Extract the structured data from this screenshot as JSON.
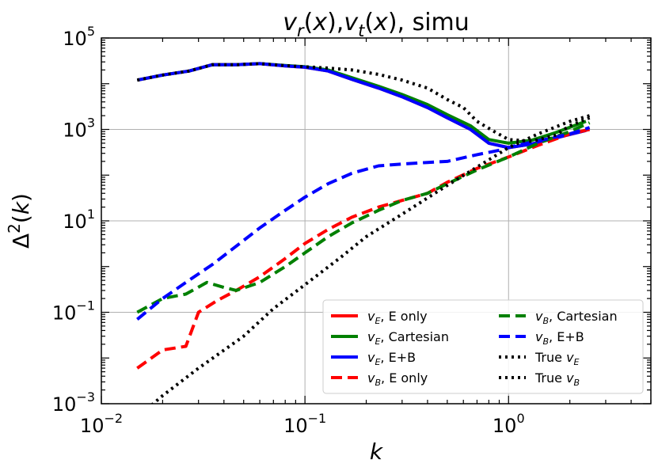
{
  "chart_data": {
    "type": "line",
    "title": "v_r(x),v_t(x), simu",
    "title_parts": [
      {
        "t": "v",
        "i": true
      },
      {
        "t": "r",
        "sub": true,
        "i": true
      },
      {
        "t": "("
      },
      {
        "t": "x",
        "i": true
      },
      {
        "t": "),"
      },
      {
        "t": "v",
        "i": true
      },
      {
        "t": "t",
        "sub": true,
        "i": true
      },
      {
        "t": "("
      },
      {
        "t": "x",
        "i": true
      },
      {
        "t": "), simu"
      }
    ],
    "xlabel": "k",
    "ylabel": "Δ²(k)",
    "ylabel_parts": [
      {
        "t": "Δ"
      },
      {
        "t": "2",
        "sup": true
      },
      {
        "t": "("
      },
      {
        "t": "k",
        "i": true
      },
      {
        "t": ")"
      }
    ],
    "xscale": "log",
    "yscale": "log",
    "xlim": [
      0.01,
      5.0
    ],
    "ylim": [
      0.001,
      100000
    ],
    "xticks": [
      0.01,
      0.1,
      1.0
    ],
    "xtick_labels": [
      {
        "base": "10",
        "exp": "−2"
      },
      {
        "base": "10",
        "exp": "−1"
      },
      {
        "base": "10",
        "exp": "0"
      }
    ],
    "yticks": [
      0.001,
      0.1,
      10,
      1000,
      100000
    ],
    "ytick_labels": [
      {
        "base": "10",
        "exp": "−3"
      },
      {
        "base": "10",
        "exp": "−1"
      },
      {
        "base": "10",
        "exp": "1"
      },
      {
        "base": "10",
        "exp": "3"
      },
      {
        "base": "10",
        "exp": "5"
      }
    ],
    "grid": true,
    "legend_position": "lower-right",
    "series": [
      {
        "name": "v_E, E only",
        "label_parts": [
          {
            "t": "v",
            "i": true
          },
          {
            "t": "E",
            "sub": true,
            "i": true
          },
          {
            "t": ", E only"
          }
        ],
        "color": "#ff0000",
        "dash": "solid",
        "x": [
          0.015,
          0.02,
          0.027,
          0.035,
          0.046,
          0.06,
          0.08,
          0.1,
          0.13,
          0.17,
          0.23,
          0.3,
          0.4,
          0.5,
          0.65,
          0.8,
          1.0,
          1.3,
          1.7,
          2.4
        ],
        "y": [
          12000,
          15500,
          19000,
          26000,
          26000,
          27500,
          24500,
          23000,
          19000,
          12500,
          8000,
          5200,
          3000,
          1800,
          1000,
          500,
          400,
          480,
          650,
          950
        ]
      },
      {
        "name": "v_E, Cartesian",
        "label_parts": [
          {
            "t": "v",
            "i": true
          },
          {
            "t": "E",
            "sub": true,
            "i": true
          },
          {
            "t": ", Cartesian"
          }
        ],
        "color": "#008000",
        "dash": "solid",
        "x": [
          0.015,
          0.02,
          0.027,
          0.035,
          0.046,
          0.06,
          0.08,
          0.1,
          0.13,
          0.17,
          0.23,
          0.3,
          0.4,
          0.5,
          0.65,
          0.8,
          1.0,
          1.3,
          1.7,
          2.4
        ],
        "y": [
          12000,
          15500,
          19000,
          26000,
          26000,
          27500,
          25000,
          23500,
          20000,
          13500,
          8800,
          5800,
          3500,
          2100,
          1200,
          600,
          500,
          580,
          850,
          1500
        ]
      },
      {
        "name": "v_E, E+B",
        "label_parts": [
          {
            "t": "v",
            "i": true
          },
          {
            "t": "E",
            "sub": true,
            "i": true
          },
          {
            "t": ", E+B"
          }
        ],
        "color": "#0000ff",
        "dash": "solid",
        "x": [
          0.015,
          0.02,
          0.027,
          0.035,
          0.046,
          0.06,
          0.08,
          0.1,
          0.13,
          0.17,
          0.23,
          0.3,
          0.4,
          0.5,
          0.65,
          0.8,
          1.0,
          1.3,
          1.7,
          2.4
        ],
        "y": [
          12000,
          15500,
          19000,
          26000,
          26000,
          27500,
          24500,
          23000,
          19000,
          12500,
          8000,
          5200,
          3000,
          1800,
          1000,
          500,
          400,
          480,
          650,
          950
        ]
      },
      {
        "name": "v_B, E only",
        "label_parts": [
          {
            "t": "v",
            "i": true
          },
          {
            "t": "B",
            "sub": true,
            "i": true
          },
          {
            "t": ", E only"
          }
        ],
        "color": "#ff0000",
        "dash": "dashed",
        "x": [
          0.015,
          0.02,
          0.026,
          0.03,
          0.037,
          0.046,
          0.06,
          0.08,
          0.1,
          0.13,
          0.17,
          0.23,
          0.3,
          0.4,
          0.5,
          0.7,
          1.0,
          1.4,
          2.0,
          2.5
        ],
        "y": [
          0.006,
          0.015,
          0.018,
          0.1,
          0.18,
          0.3,
          0.6,
          1.5,
          3.2,
          6.5,
          12,
          20,
          28,
          40,
          70,
          140,
          250,
          450,
          800,
          1000
        ]
      },
      {
        "name": "v_B, Cartesian",
        "label_parts": [
          {
            "t": "v",
            "i": true
          },
          {
            "t": "B",
            "sub": true,
            "i": true
          },
          {
            "t": ", Cartesian"
          }
        ],
        "color": "#008000",
        "dash": "dashed",
        "x": [
          0.015,
          0.02,
          0.026,
          0.033,
          0.04,
          0.046,
          0.06,
          0.08,
          0.1,
          0.13,
          0.17,
          0.23,
          0.3,
          0.4,
          0.5,
          0.7,
          1.0,
          1.4,
          2.0,
          2.5
        ],
        "y": [
          0.1,
          0.2,
          0.25,
          0.45,
          0.35,
          0.3,
          0.45,
          1.0,
          2.0,
          4.5,
          9,
          17,
          28,
          40,
          65,
          130,
          250,
          500,
          900,
          1400
        ]
      },
      {
        "name": "v_B, E+B",
        "label_parts": [
          {
            "t": "v",
            "i": true
          },
          {
            "t": "B",
            "sub": true,
            "i": true
          },
          {
            "t": ", E+B"
          }
        ],
        "color": "#0000ff",
        "dash": "dashed",
        "x": [
          0.015,
          0.02,
          0.026,
          0.035,
          0.046,
          0.06,
          0.08,
          0.1,
          0.13,
          0.17,
          0.23,
          0.3,
          0.4,
          0.5,
          0.7,
          0.9,
          1.1,
          1.5,
          2.0,
          2.5
        ],
        "y": [
          0.07,
          0.2,
          0.45,
          1.1,
          2.8,
          7,
          17,
          33,
          65,
          110,
          160,
          175,
          190,
          200,
          280,
          350,
          450,
          600,
          800,
          1100
        ]
      },
      {
        "name": "True v_E",
        "label_parts": [
          {
            "t": "True "
          },
          {
            "t": "v",
            "i": true
          },
          {
            "t": "E",
            "sub": true,
            "i": true
          }
        ],
        "color": "#000000",
        "dash": "dotted",
        "x": [
          0.015,
          0.02,
          0.027,
          0.035,
          0.046,
          0.06,
          0.08,
          0.1,
          0.13,
          0.17,
          0.23,
          0.3,
          0.4,
          0.5,
          0.6,
          0.7,
          0.85,
          1.0,
          1.3,
          1.7,
          2.0,
          2.5
        ],
        "y": [
          12000,
          15500,
          19000,
          26000,
          26000,
          27500,
          25000,
          23500,
          22000,
          20000,
          16000,
          12000,
          8000,
          4500,
          3000,
          1500,
          900,
          600,
          550,
          750,
          1200,
          1800
        ]
      },
      {
        "name": "True v_B",
        "label_parts": [
          {
            "t": "True "
          },
          {
            "t": "v",
            "i": true
          },
          {
            "t": "B",
            "sub": true,
            "i": true
          }
        ],
        "color": "#000000",
        "dash": "dotted",
        "x": [
          0.015,
          0.02,
          0.03,
          0.05,
          0.07,
          0.1,
          0.15,
          0.2,
          0.3,
          0.5,
          0.7,
          1.0,
          1.4,
          2.0,
          2.5
        ],
        "y": [
          0.0005,
          0.0015,
          0.006,
          0.03,
          0.12,
          0.4,
          1.6,
          4.5,
          14,
          60,
          150,
          400,
          800,
          1500,
          2000
        ]
      }
    ]
  }
}
